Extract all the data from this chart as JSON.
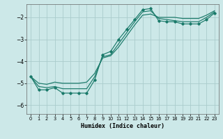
{
  "xlabel": "Humidex (Indice chaleur)",
  "xlim": [
    -0.5,
    23.5
  ],
  "ylim": [
    -6.4,
    -1.4
  ],
  "yticks": [
    -6,
    -5,
    -4,
    -3,
    -2
  ],
  "xticks": [
    0,
    1,
    2,
    3,
    4,
    5,
    6,
    7,
    8,
    9,
    10,
    11,
    12,
    13,
    14,
    15,
    16,
    17,
    18,
    19,
    20,
    21,
    22,
    23
  ],
  "bg_color": "#cce8e8",
  "grid_color": "#aacccc",
  "line_color": "#1a7a6a",
  "line1_x": [
    0,
    1,
    2,
    3,
    4,
    5,
    6,
    7,
    8,
    9,
    10,
    11,
    12,
    13,
    14,
    15,
    16,
    17,
    18,
    19,
    20,
    21,
    22,
    23
  ],
  "line1_y": [
    -4.7,
    -5.3,
    -5.3,
    -5.2,
    -5.45,
    -5.45,
    -5.45,
    -5.45,
    -4.85,
    -3.7,
    -3.55,
    -3.0,
    -2.55,
    -2.1,
    -1.65,
    -1.6,
    -2.15,
    -2.2,
    -2.2,
    -2.3,
    -2.3,
    -2.3,
    -2.1,
    -1.8
  ],
  "line2_x": [
    0,
    1,
    2,
    3,
    4,
    5,
    6,
    7,
    8,
    9,
    10,
    11,
    12,
    13,
    14,
    15,
    16,
    17,
    18,
    19,
    20,
    21,
    22,
    23
  ],
  "line2_y": [
    -4.7,
    -5.15,
    -5.2,
    -5.15,
    -5.25,
    -5.25,
    -5.25,
    -5.25,
    -4.7,
    -3.8,
    -3.7,
    -3.2,
    -2.7,
    -2.2,
    -1.75,
    -1.7,
    -2.05,
    -2.1,
    -2.15,
    -2.2,
    -2.2,
    -2.2,
    -2.0,
    -1.75
  ],
  "line3_x": [
    0,
    1,
    2,
    3,
    4,
    5,
    6,
    7,
    8,
    9,
    10,
    11,
    12,
    13,
    14,
    15,
    16,
    17,
    18,
    19,
    20,
    21,
    22,
    23
  ],
  "line3_y": [
    -4.7,
    -5.0,
    -5.05,
    -4.95,
    -5.0,
    -5.0,
    -5.0,
    -4.95,
    -4.55,
    -3.85,
    -3.75,
    -3.35,
    -2.85,
    -2.35,
    -1.9,
    -1.85,
    -2.0,
    -2.0,
    -2.0,
    -2.05,
    -2.05,
    -2.05,
    -1.9,
    -1.7
  ]
}
